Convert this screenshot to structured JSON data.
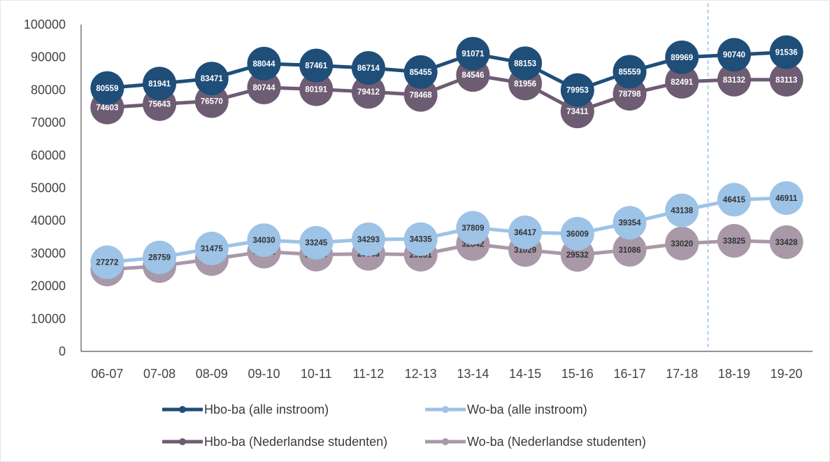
{
  "chart_data": {
    "type": "line",
    "categories": [
      "06-07",
      "07-08",
      "08-09",
      "09-10",
      "10-11",
      "11-12",
      "12-13",
      "13-14",
      "14-15",
      "15-16",
      "16-17",
      "17-18",
      "18-19",
      "19-20"
    ],
    "ylim": [
      0,
      100000
    ],
    "yticks": [
      0,
      10000,
      20000,
      30000,
      40000,
      50000,
      60000,
      70000,
      80000,
      90000,
      100000
    ],
    "grid": false,
    "forecast_divider_after": "17-18",
    "legend_position": "bottom",
    "series": [
      {
        "name": "Hbo-ba (alle instroom)",
        "color": "#1f4e79",
        "label_color": "#ffffff",
        "values": [
          80559,
          81941,
          83471,
          88044,
          87461,
          86714,
          85455,
          91071,
          88153,
          79953,
          85559,
          89969,
          90740,
          91536
        ]
      },
      {
        "name": "Wo-ba (alle instroom)",
        "color": "#9dc3e6",
        "label_color": "#333333",
        "values": [
          27272,
          28759,
          31475,
          34030,
          33245,
          34293,
          34335,
          37809,
          36417,
          36009,
          39354,
          43138,
          46415,
          46911
        ]
      },
      {
        "name": "Hbo-ba (Nederlandse studenten)",
        "color": "#6e5c73",
        "label_color": "#ffffff",
        "values": [
          74603,
          75643,
          76570,
          80744,
          80191,
          79412,
          78468,
          84546,
          81956,
          73411,
          78798,
          82491,
          83132,
          83113
        ]
      },
      {
        "name": "Wo-ba (Nederlandse studenten)",
        "color": "#a898a8",
        "label_color": "#333333",
        "values": [
          25064,
          26108,
          28239,
          30522,
          29615,
          29863,
          29581,
          32842,
          31029,
          29532,
          31086,
          33020,
          33825,
          33428
        ]
      }
    ]
  }
}
